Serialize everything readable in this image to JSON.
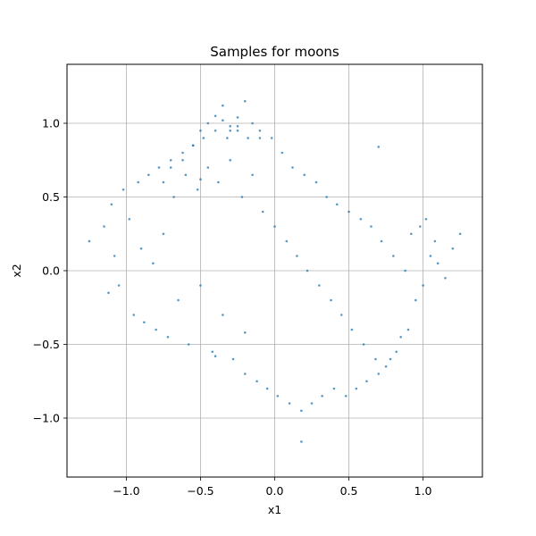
{
  "chart_data": {
    "type": "scatter",
    "title": "Samples for moons",
    "xlabel": "x1",
    "ylabel": "x2",
    "xlim": [
      -1.4,
      1.4
    ],
    "ylim": [
      -1.4,
      1.4
    ],
    "xticks": [
      -1.0,
      -0.5,
      0.0,
      0.5,
      1.0
    ],
    "yticks": [
      -1.0,
      -0.5,
      0.0,
      0.5,
      1.0
    ],
    "xtick_labels": [
      "−1.0",
      "−0.5",
      "0.0",
      "0.5",
      "1.0"
    ],
    "ytick_labels": [
      "−1.0",
      "−0.5",
      "0.0",
      "0.5",
      "1.0"
    ],
    "grid": true,
    "point_color": "#1f77b4",
    "series": [
      {
        "x": [
          -1.25,
          -1.15,
          -1.12,
          -1.1,
          -1.05,
          -1.02,
          -1.08,
          -0.98,
          -0.95,
          -0.92,
          -0.9,
          -0.88,
          -0.85,
          -0.82,
          -0.8,
          -0.78,
          -0.75,
          -0.72,
          -0.7,
          -0.68,
          -0.65,
          -0.62,
          -0.6,
          -0.58,
          -0.55,
          -0.52,
          -0.5,
          -0.48,
          -0.45,
          -0.42,
          -0.4,
          -0.38,
          -0.35,
          -0.32,
          -0.3,
          -0.28,
          -0.25,
          -0.22,
          -0.2,
          -0.18,
          -0.15,
          -0.12,
          -0.1,
          -0.08,
          -0.05,
          -0.02,
          0.0,
          0.02,
          0.05,
          0.08,
          0.1,
          0.12,
          0.15,
          0.18,
          0.2,
          0.22,
          0.25,
          0.28,
          0.3,
          0.32,
          0.35,
          0.38,
          0.4,
          0.42,
          0.45,
          0.48,
          0.5,
          0.52,
          0.55,
          0.58,
          0.6,
          0.62,
          0.65,
          0.68,
          0.7,
          0.72,
          0.75,
          0.78,
          0.8,
          0.82,
          0.85,
          0.88,
          0.9,
          0.92,
          0.95,
          0.98,
          1.0,
          1.02,
          1.05,
          1.08,
          1.1,
          1.15,
          1.2,
          1.25,
          -0.75,
          -0.7,
          -0.62,
          -0.55,
          -0.5,
          -0.45,
          -0.4,
          -0.35,
          -0.3,
          -0.25,
          -0.2,
          -0.15,
          -0.1,
          -0.35,
          -0.3,
          -0.25,
          0.7,
          0.18,
          -0.2,
          -0.4,
          -0.5
        ],
        "y": [
          0.2,
          0.3,
          -0.15,
          0.45,
          -0.1,
          0.55,
          0.1,
          0.35,
          -0.3,
          0.6,
          0.15,
          -0.35,
          0.65,
          0.05,
          -0.4,
          0.7,
          0.25,
          -0.45,
          0.75,
          0.5,
          -0.2,
          0.8,
          0.65,
          -0.5,
          0.85,
          0.55,
          -0.1,
          0.9,
          0.7,
          -0.55,
          0.95,
          0.6,
          -0.3,
          0.9,
          0.75,
          -0.6,
          0.95,
          0.5,
          -0.7,
          0.9,
          0.65,
          -0.75,
          0.95,
          0.4,
          -0.8,
          0.9,
          0.3,
          -0.85,
          0.8,
          0.2,
          -0.9,
          0.7,
          0.1,
          -0.95,
          0.65,
          0.0,
          -0.9,
          0.6,
          -0.1,
          -0.85,
          0.5,
          -0.2,
          -0.8,
          0.45,
          -0.3,
          -0.85,
          0.4,
          -0.4,
          -0.8,
          0.35,
          -0.5,
          -0.75,
          0.3,
          -0.6,
          -0.7,
          0.2,
          -0.65,
          -0.6,
          0.1,
          -0.55,
          -0.45,
          0.0,
          -0.4,
          0.25,
          -0.2,
          0.3,
          -0.1,
          0.35,
          0.1,
          0.2,
          0.05,
          -0.05,
          0.15,
          0.25,
          0.6,
          0.7,
          0.75,
          0.85,
          0.95,
          1.0,
          1.05,
          1.12,
          0.98,
          1.04,
          1.15,
          1.0,
          0.9,
          1.02,
          0.95,
          0.98,
          0.84,
          -1.16,
          -0.42,
          -0.58,
          0.62
        ]
      }
    ]
  }
}
